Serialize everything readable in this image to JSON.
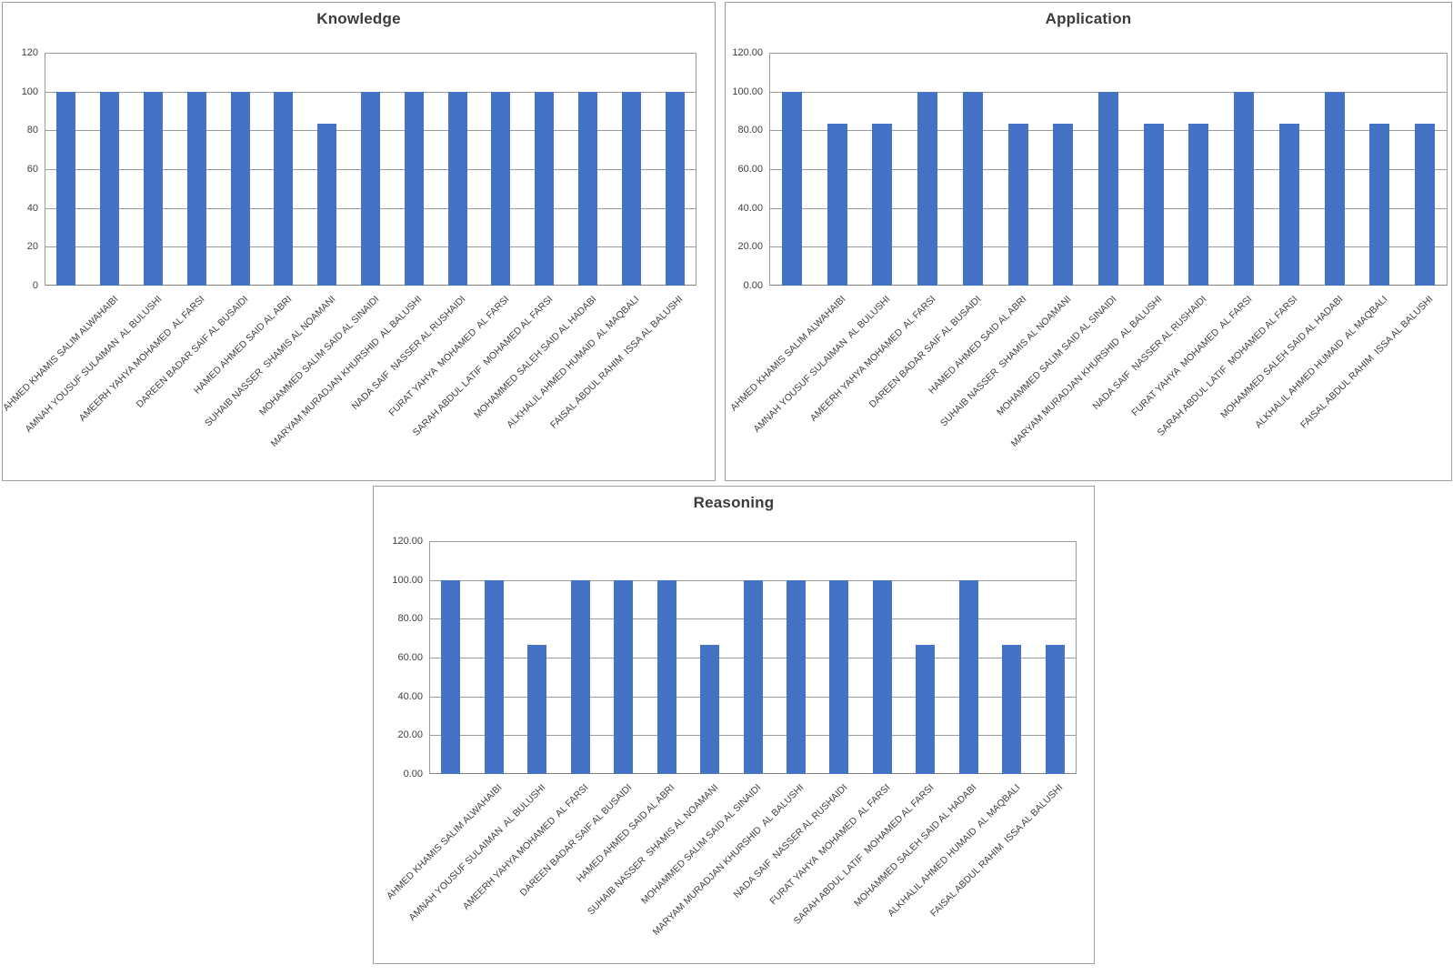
{
  "colors": {
    "bar": "#4472C4",
    "gridline": "#9B9B9B",
    "axis_line": "#7F7F7F",
    "panel_border": "#A0A0A0",
    "text": "#404040",
    "title_text": "#3B3B3B"
  },
  "chart_data": [
    {
      "type": "bar",
      "title": "Knowledge",
      "xlabel": "",
      "ylabel": "",
      "ylim": [
        0,
        120
      ],
      "grid": true,
      "legend": false,
      "y_ticks": [
        "120",
        "100",
        "80",
        "60",
        "40",
        "20",
        "0"
      ],
      "categories": [
        "",
        "AHMED KHAMIS SALIM ALWAHAIBI",
        "AMNAH YOUSUF SULAIMAN  AL BULUSHI",
        "AMEERH YAHYA MOHAMED  AL FARSI",
        "DAREEN BADAR SAIF AL BUSAIDI",
        "HAMED AHMED SAID AL ABRI",
        "SUHAIB NASSER  SHAMIS AL NOAMANI",
        "MOHAMMED SALIM SAID AL SINAIDI",
        "MARYAM MURADJAN KHURSHID  AL BALUSHI",
        "NADA SAIF  NASSER AL RUSHAIDI",
        "FURAT YAHYA  MOHAMED  AL FARSI",
        "SARAH ABDUL LATIF  MOHAMED AL FARSI",
        "MOHAMMED SALEH SAID AL HADABI",
        "ALKHALIL AHMED HUMAID  AL MAQBALI",
        "FAISAL ABDUL RAHIM  ISSA AL BALUSHI"
      ],
      "values": [
        100,
        100,
        100,
        100,
        100,
        100,
        83.33,
        100,
        100,
        100,
        100,
        100,
        100,
        100,
        100
      ]
    },
    {
      "type": "bar",
      "title": "Application",
      "xlabel": "",
      "ylabel": "",
      "ylim": [
        0,
        120
      ],
      "grid": true,
      "legend": false,
      "y_ticks": [
        "120.00",
        "100.00",
        "80.00",
        "60.00",
        "40.00",
        "20.00",
        "0.00"
      ],
      "categories": [
        "",
        "AHMED KHAMIS SALIM ALWAHAIBI",
        "AMNAH YOUSUF SULAIMAN  AL BULUSHI",
        "AMEERH YAHYA MOHAMED  AL FARSI",
        "DAREEN BADAR SAIF AL BUSAIDI",
        "HAMED AHMED SAID AL ABRI",
        "SUHAIB NASSER  SHAMIS AL NOAMANI",
        "MOHAMMED SALIM SAID AL SINAIDI",
        "MARYAM MURADJAN KHURSHID  AL BALUSHI",
        "NADA SAIF  NASSER AL RUSHAIDI",
        "FURAT YAHYA  MOHAMED  AL FARSI",
        "SARAH ABDUL LATIF  MOHAMED AL FARSI",
        "MOHAMMED SALEH SAID AL HADABI",
        "ALKHALIL AHMED HUMAID  AL MAQBALI",
        "FAISAL ABDUL RAHIM  ISSA AL BALUSHI"
      ],
      "values": [
        100,
        83.33,
        83.33,
        100,
        100,
        83.33,
        83.33,
        100,
        83.33,
        83.33,
        100,
        83.33,
        100,
        83.33,
        83.33
      ]
    },
    {
      "type": "bar",
      "title": "Reasoning",
      "xlabel": "",
      "ylabel": "",
      "ylim": [
        0,
        120
      ],
      "grid": true,
      "legend": false,
      "y_ticks": [
        "120.00",
        "100.00",
        "80.00",
        "60.00",
        "40.00",
        "20.00",
        "0.00"
      ],
      "categories": [
        "",
        "AHMED KHAMIS SALIM ALWAHAIBI",
        "AMNAH YOUSUF SULAIMAN  AL BULUSHI",
        "AMEERH YAHYA MOHAMED  AL FARSI",
        "DAREEN BADAR SAIF AL BUSAIDI",
        "HAMED AHMED SAID AL ABRI",
        "SUHAIB NASSER  SHAMIS AL NOAMANI",
        "MOHAMMED SALIM SAID AL SINAIDI",
        "MARYAM MURADJAN KHURSHID  AL BALUSHI",
        "NADA SAIF  NASSER AL RUSHAIDI",
        "FURAT YAHYA  MOHAMED  AL FARSI",
        "SARAH ABDUL LATIF  MOHAMED AL FARSI",
        "MOHAMMED SALEH SAID AL HADABI",
        "ALKHALIL AHMED HUMAID  AL MAQBALI",
        "FAISAL ABDUL RAHIM  ISSA AL BALUSHI"
      ],
      "values": [
        100,
        100,
        66.67,
        100,
        100,
        100,
        66.67,
        100,
        100,
        100,
        100,
        66.67,
        100,
        66.67,
        66.67
      ]
    }
  ]
}
